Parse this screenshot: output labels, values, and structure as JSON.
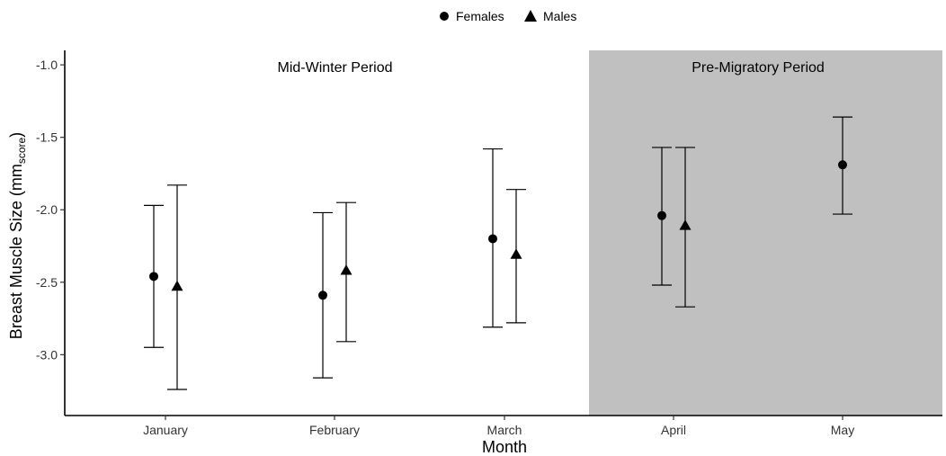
{
  "chart_data": {
    "type": "scatter",
    "xlabel": "Month",
    "ylabel_main": "Breast Muscle Size (mm",
    "ylabel_sub": "score",
    "ylabel_close": ")",
    "categories": [
      "January",
      "February",
      "March",
      "April",
      "May"
    ],
    "ylim": [
      -3.42,
      -0.9
    ],
    "yticks": [
      -3.0,
      -2.5,
      -2.0,
      -1.5,
      -1.0
    ],
    "ytick_labels": [
      "-3.0",
      "-2.5",
      "-2.0",
      "-1.5",
      "-1.0"
    ],
    "grid": false,
    "legend_position": "top-center",
    "series": [
      {
        "name": "Females",
        "marker": "circle",
        "points": [
          {
            "category": "January",
            "y": -2.46,
            "lower": -2.95,
            "upper": -1.97
          },
          {
            "category": "February",
            "y": -2.59,
            "lower": -3.16,
            "upper": -2.02
          },
          {
            "category": "March",
            "y": -2.2,
            "lower": -2.81,
            "upper": -1.58
          },
          {
            "category": "April",
            "y": -2.04,
            "lower": -2.52,
            "upper": -1.57
          },
          {
            "category": "May",
            "y": -1.69,
            "lower": -2.03,
            "upper": -1.36
          }
        ]
      },
      {
        "name": "Males",
        "marker": "triangle",
        "points": [
          {
            "category": "January",
            "y": -2.53,
            "lower": -3.24,
            "upper": -1.83
          },
          {
            "category": "February",
            "y": -2.42,
            "lower": -2.91,
            "upper": -1.95
          },
          {
            "category": "March",
            "y": -2.31,
            "lower": -2.78,
            "upper": -1.86
          },
          {
            "category": "April",
            "y": -2.11,
            "lower": -2.67,
            "upper": -1.57
          }
        ]
      }
    ],
    "periods": [
      {
        "label": "Mid-Winter Period",
        "from": "January",
        "to": "March",
        "shaded": false
      },
      {
        "label": "Pre-Migratory Period",
        "from": "April",
        "to": "May",
        "shaded": true
      }
    ],
    "colors": {
      "shade": "#c0c0c0",
      "marker": "#000000",
      "axis": "#000000"
    }
  }
}
